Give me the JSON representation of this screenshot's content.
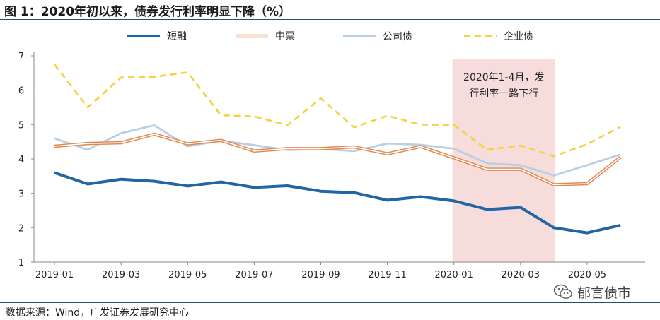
{
  "title": "图 1：2020年初以来，债券发行利率明显下降（%）",
  "source": "数据来源：Wind，广发证券发展研究中心",
  "watermark": "郁言债市",
  "annotation": [
    "2020年1-4月，发",
    "行利率一路下行"
  ],
  "colors": {
    "short_financing": "#2166a4",
    "medium_note": "#e0894f",
    "corporate_bond": "#b8cfe5",
    "enterprise_bond": "#f5d13c",
    "highlight": "#f7dcdc"
  },
  "chart_data": {
    "type": "line",
    "title": "2020年初以来，债券发行利率明显下降（%）",
    "x": [
      "2019-01",
      "2019-02",
      "2019-03",
      "2019-04",
      "2019-05",
      "2019-06",
      "2019-07",
      "2019-08",
      "2019-09",
      "2019-10",
      "2019-11",
      "2019-12",
      "2020-01",
      "2020-02",
      "2020-03",
      "2020-04",
      "2020-05",
      "2020-06"
    ],
    "xtick_labels": [
      "2019-01",
      "2019-03",
      "2019-05",
      "2019-07",
      "2019-09",
      "2019-11",
      "2020-01",
      "2020-03",
      "2020-05"
    ],
    "ylim": [
      1,
      7
    ],
    "yticks": [
      1,
      2,
      3,
      4,
      5,
      6,
      7
    ],
    "legend_position": "top",
    "highlight_range": [
      "2020-01",
      "2020-04"
    ],
    "series": [
      {
        "name": "短融",
        "style": "solid-thick",
        "values": [
          3.6,
          3.27,
          3.41,
          3.35,
          3.21,
          3.33,
          3.17,
          3.22,
          3.06,
          3.02,
          2.8,
          2.9,
          2.78,
          2.53,
          2.59,
          2.0,
          1.85,
          2.07
        ]
      },
      {
        "name": "中票",
        "style": "double",
        "values": [
          4.37,
          4.45,
          4.47,
          4.72,
          4.44,
          4.54,
          4.23,
          4.3,
          4.3,
          4.35,
          4.15,
          4.36,
          4.03,
          3.7,
          3.7,
          3.25,
          3.28,
          4.05
        ]
      },
      {
        "name": "公司债",
        "style": "solid",
        "values": [
          4.6,
          4.27,
          4.75,
          4.98,
          4.37,
          4.53,
          4.4,
          4.26,
          4.29,
          4.23,
          4.45,
          4.41,
          4.3,
          3.87,
          3.82,
          3.52,
          3.82,
          4.13
        ]
      },
      {
        "name": "企业债",
        "style": "dashed",
        "values": [
          6.75,
          5.5,
          6.37,
          6.39,
          6.52,
          5.27,
          5.24,
          4.98,
          5.76,
          4.92,
          5.26,
          5.0,
          4.99,
          4.27,
          4.39,
          4.08,
          4.43,
          4.93
        ]
      }
    ]
  }
}
